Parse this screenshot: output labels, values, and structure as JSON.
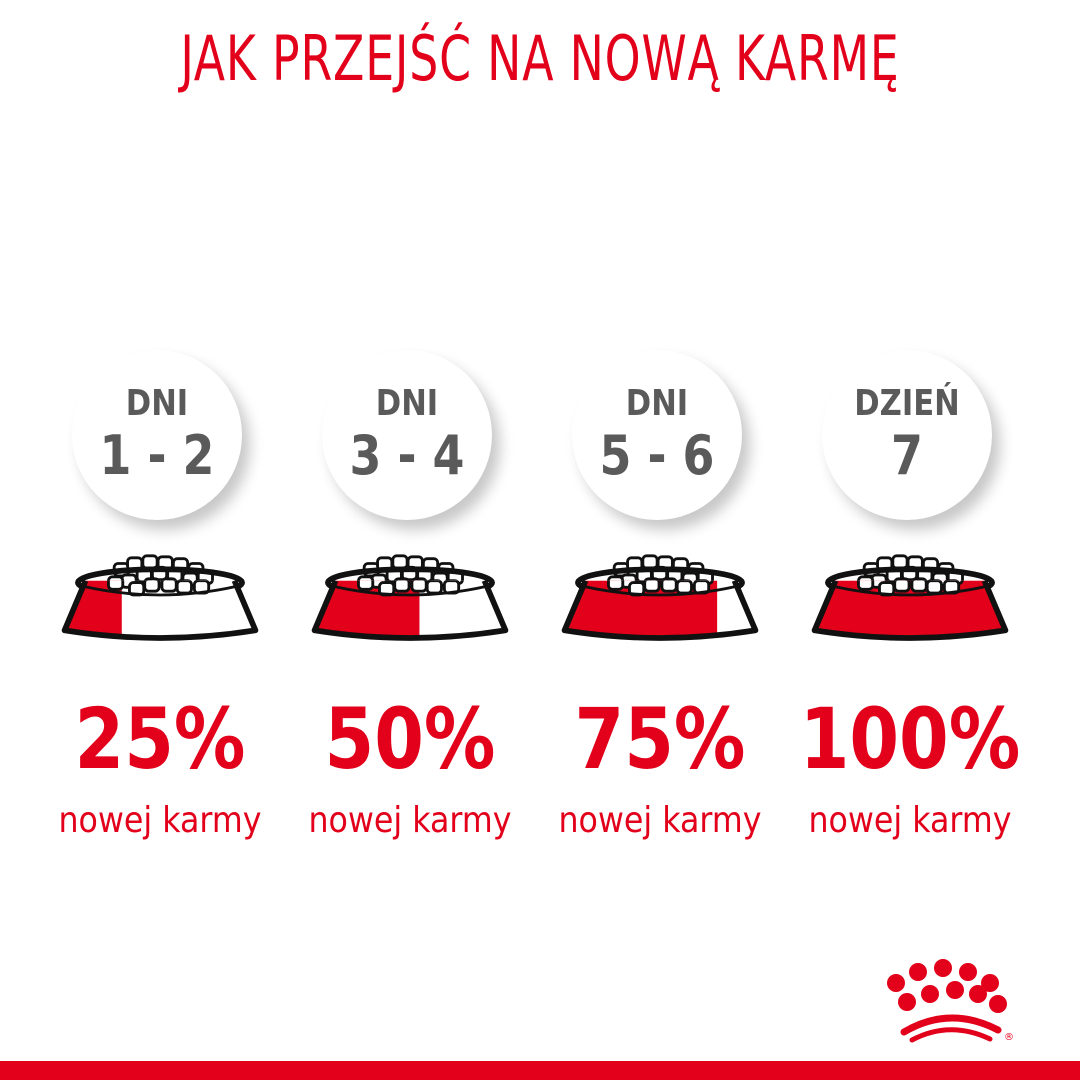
{
  "title": "JAK PRZEJŚĆ NA NOWĄ KARMĘ",
  "colors": {
    "brand_red": "#e2001a",
    "circle_text": "#5a5a5a"
  },
  "steps": [
    {
      "label": "DNI",
      "days": "1 - 2",
      "percent": "25%",
      "new_food_fraction": 0.25,
      "caption": "nowej karmy"
    },
    {
      "label": "DNI",
      "days": "3 - 4",
      "percent": "50%",
      "new_food_fraction": 0.5,
      "caption": "nowej karmy"
    },
    {
      "label": "DNI",
      "days": "5 - 6",
      "percent": "75%",
      "new_food_fraction": 0.75,
      "caption": "nowej karmy"
    },
    {
      "label": "DZIEŃ",
      "days": "7",
      "percent": "100%",
      "new_food_fraction": 1.0,
      "caption": "nowej karmy"
    }
  ],
  "logo": {
    "name": "royal-canin-crown-logo",
    "registered": "®"
  }
}
